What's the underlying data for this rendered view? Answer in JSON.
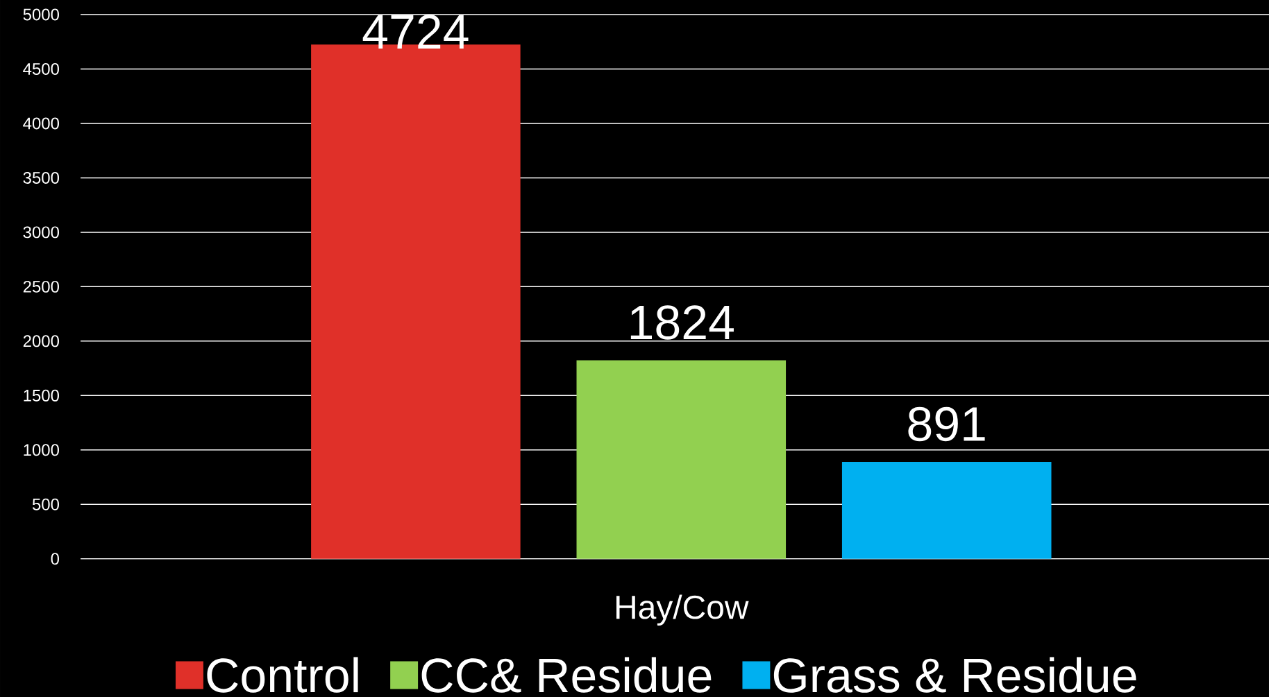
{
  "chart_data": {
    "type": "bar",
    "categories": [
      "Hay/Cow"
    ],
    "series": [
      {
        "name": "Control",
        "color": "#e03029",
        "values": [
          4724
        ]
      },
      {
        "name": "CC& Residue",
        "color": "#92d050",
        "values": [
          1824
        ]
      },
      {
        "name": "Grass & Residue",
        "color": "#00b0f0",
        "values": [
          891
        ]
      }
    ],
    "ylim": [
      0,
      5000
    ],
    "yticks": [
      0,
      500,
      1000,
      1500,
      2000,
      2500,
      3000,
      3500,
      4000,
      4500,
      5000
    ],
    "grid": "y",
    "legend": "bottom",
    "data_labels": true
  }
}
